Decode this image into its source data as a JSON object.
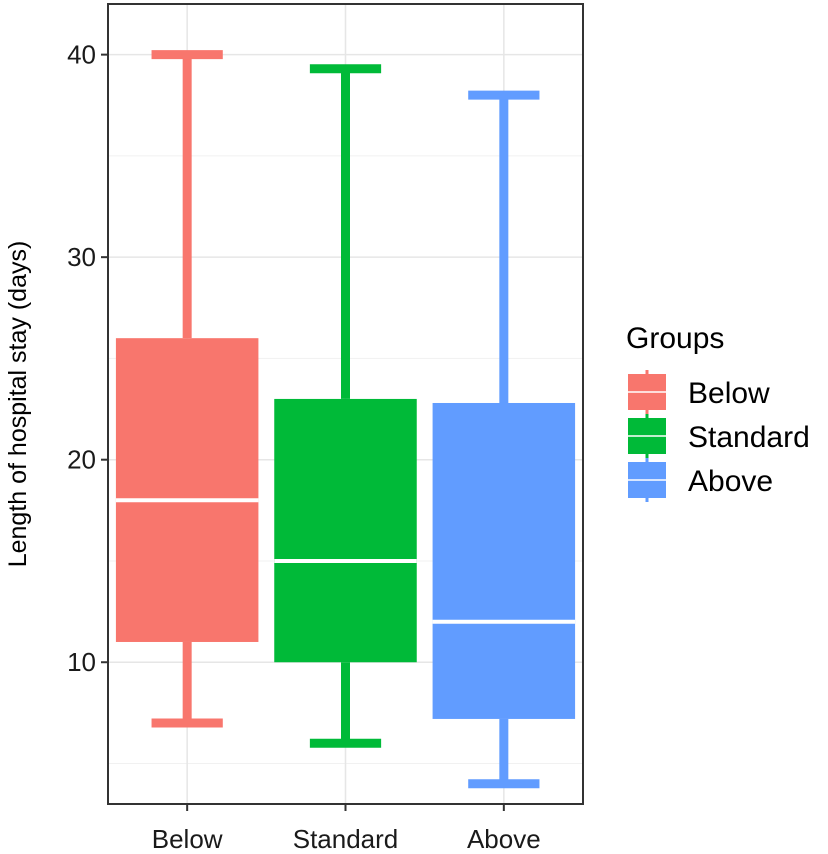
{
  "chart_data": {
    "type": "boxplot",
    "title": "",
    "xlabel": "",
    "ylabel": "Length of hospital stay (days)",
    "ylim": [
      3,
      42.5
    ],
    "yticks": [
      10,
      20,
      30,
      40
    ],
    "grid": true,
    "legend": {
      "title": "Groups",
      "placement": "right",
      "entries": [
        "Below",
        "Standard",
        "Above"
      ]
    },
    "categories": [
      "Below",
      "Standard",
      "Above"
    ],
    "series": [
      {
        "name": "Below",
        "color": "#F8766D",
        "min": 7,
        "q1": 11,
        "median": 18,
        "q3": 26,
        "max": 40
      },
      {
        "name": "Standard",
        "color": "#00BA38",
        "min": 6,
        "q1": 10,
        "median": 15,
        "q3": 23,
        "max": 39.3
      },
      {
        "name": "Above",
        "color": "#619CFF",
        "min": 4,
        "q1": 7.2,
        "median": 12,
        "q3": 22.8,
        "max": 38
      }
    ]
  }
}
